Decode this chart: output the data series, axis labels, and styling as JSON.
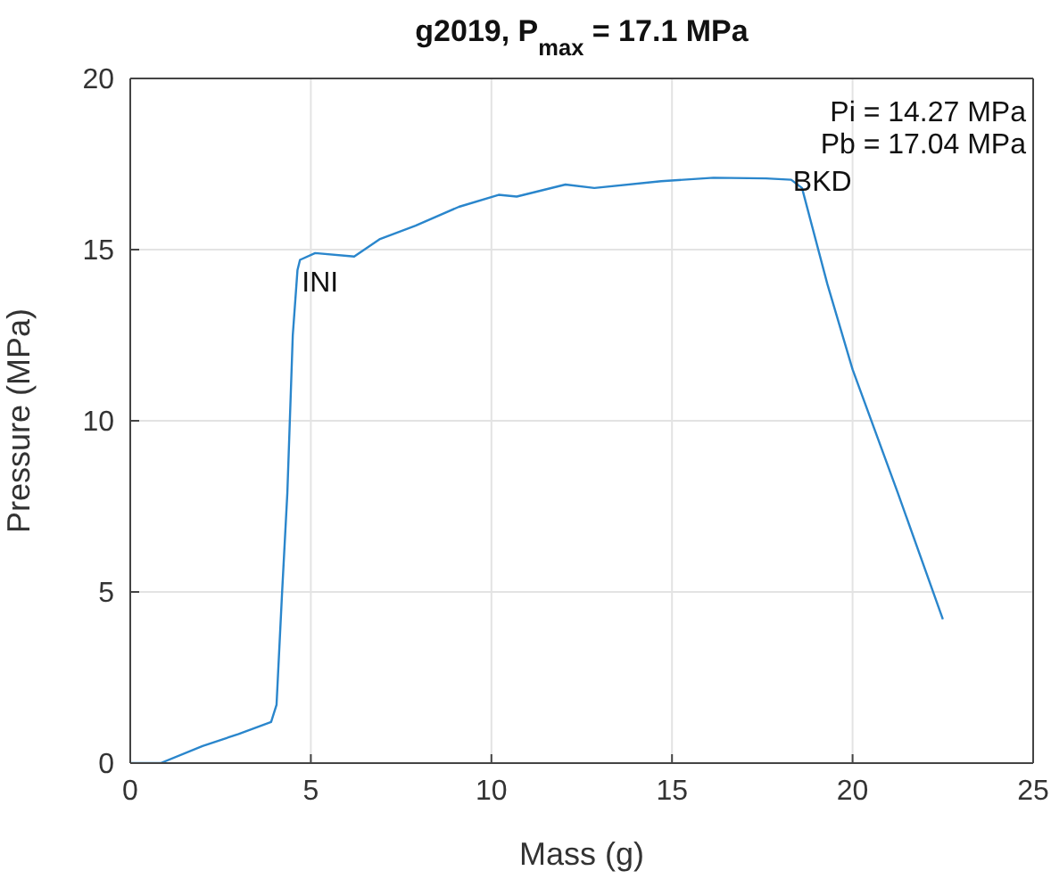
{
  "chart_data": {
    "type": "line",
    "title": "g2019, P$_{max}$ = 17.1 MPa",
    "xlabel": "Mass (g)",
    "ylabel": "Pressure (MPa)",
    "x": [
      0,
      0.84,
      2.0,
      3.0,
      3.9,
      4.05,
      4.2,
      4.35,
      4.5,
      4.63,
      4.7,
      5.12,
      6.2,
      6.9,
      7.9,
      9.1,
      10.2,
      10.7,
      12.05,
      12.85,
      14.7,
      16.15,
      17.6,
      18.3,
      18.6,
      19.3,
      20.0,
      21.25,
      22.5
    ],
    "series": [
      {
        "color": "#2a86cc",
        "values": [
          0,
          0,
          0.5,
          0.85,
          1.2,
          1.7,
          4.9,
          7.9,
          12.5,
          14.4,
          14.7,
          14.9,
          14.8,
          15.3,
          15.7,
          16.25,
          16.6,
          16.55,
          16.9,
          16.8,
          17.0,
          17.1,
          17.08,
          17.04,
          16.8,
          14.0,
          11.5,
          7.9,
          4.2
        ]
      }
    ],
    "xlim": [
      0,
      25
    ],
    "xticks": [
      0,
      5,
      10,
      15,
      20,
      25
    ],
    "ylim": [
      0,
      20
    ],
    "yticks": [
      0,
      5,
      10,
      15,
      20
    ],
    "grid": true,
    "marker": "none",
    "line_style": "solid",
    "annotations": [
      {
        "text": "INI",
        "x": 4.7,
        "y": 14.4
      },
      {
        "text": "BKD",
        "x": 18.3,
        "y": 17.04
      },
      "Pi = 14.27 MPa",
      "Pb = 17.04 MPa"
    ]
  }
}
